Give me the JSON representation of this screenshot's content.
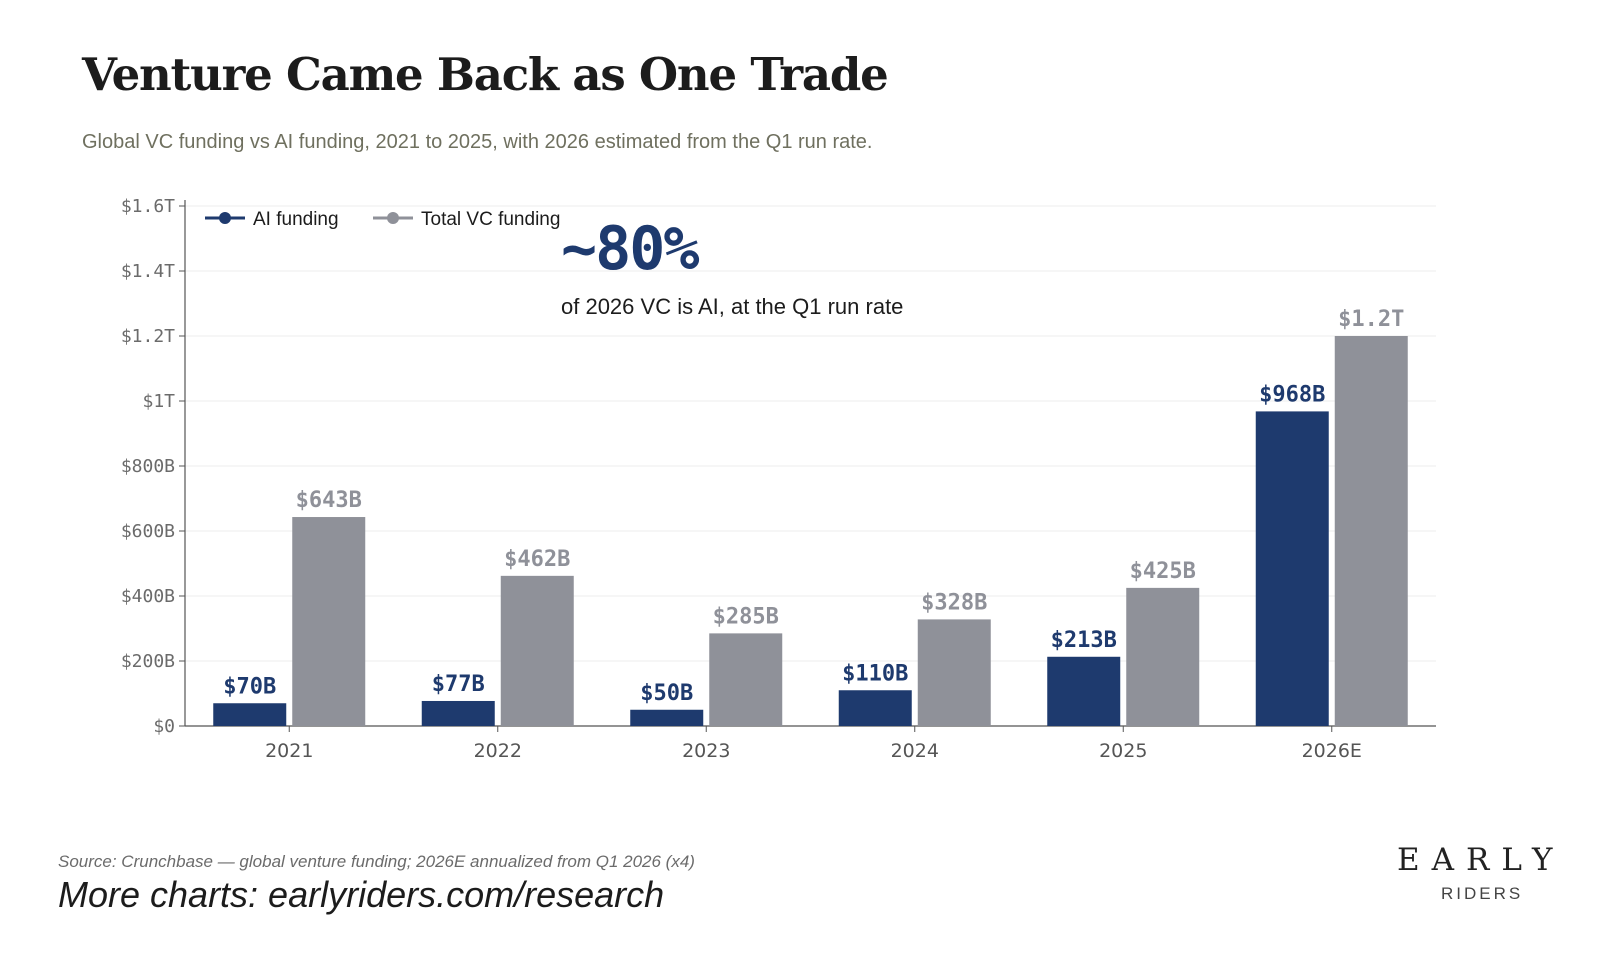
{
  "header": {
    "title": "Venture Came Back as One Trade",
    "subtitle": "Global VC funding vs AI funding, 2021 to 2025, with 2026 estimated from the Q1 run rate."
  },
  "callout": {
    "value": "~80%",
    "text": "of 2026 VC is AI, at the Q1 run rate"
  },
  "footer": {
    "source": "Source: Crunchbase — global venture funding; 2026E annualized from Q1 2026 (x4)",
    "more": "More charts: earlyriders.com/research"
  },
  "logo": {
    "top": "EARLY",
    "bottom": "RIDERS"
  },
  "chart_data": {
    "type": "bar",
    "categories": [
      "2021",
      "2022",
      "2023",
      "2024",
      "2025",
      "2026E"
    ],
    "series": [
      {
        "name": "AI funding",
        "color": "#1e3a6e",
        "values": [
          70,
          77,
          50,
          110,
          213,
          968
        ],
        "labels": [
          "$70B",
          "$77B",
          "$50B",
          "$110B",
          "$213B",
          "$968B"
        ]
      },
      {
        "name": "Total VC funding",
        "color": "#8f9199",
        "values": [
          643,
          462,
          285,
          328,
          425,
          1200
        ],
        "labels": [
          "$643B",
          "$462B",
          "$285B",
          "$328B",
          "$425B",
          "$1.2T"
        ]
      }
    ],
    "yticks": [
      0,
      200,
      400,
      600,
      800,
      1000,
      1200,
      1400,
      1600
    ],
    "ytick_labels": [
      "$0",
      "$200B",
      "$400B",
      "$600B",
      "$800B",
      "$1T",
      "$1.2T",
      "$1.4T",
      "$1.6T"
    ],
    "ylim": [
      0,
      1600
    ],
    "grid": true,
    "legend_position": "top-left"
  }
}
